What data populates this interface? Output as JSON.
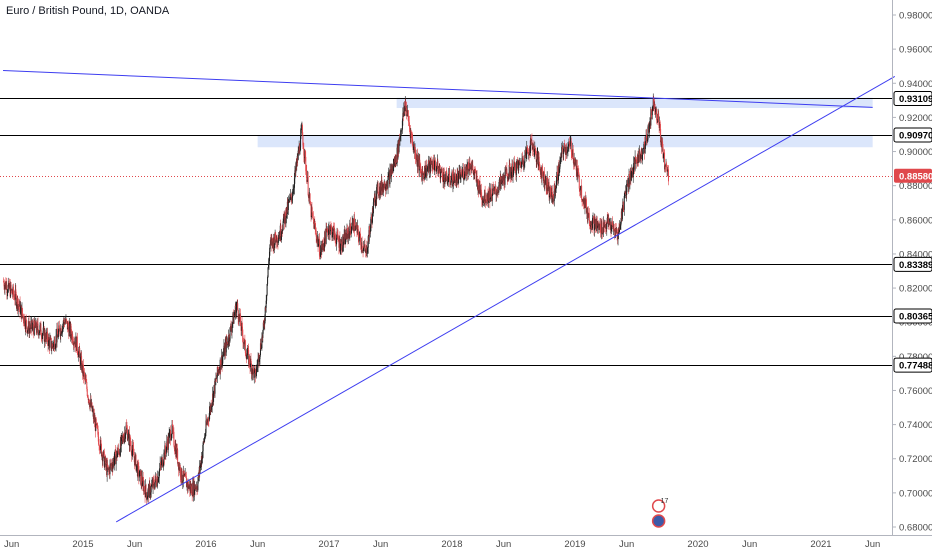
{
  "header": {
    "title": "Euro / British Pound, 1D, OANDA"
  },
  "colors": {
    "up": "#1f1f1f",
    "down": "#e0484c",
    "trendline": "#3d3df0",
    "zone": "#dbe6fb",
    "level": "#000000",
    "price_line": "#e0484c",
    "axis_text": "#4a4a4a"
  },
  "chart_data": {
    "type": "candlestick",
    "symbol": "EURGBP",
    "timeframe": "1D",
    "source": "OANDA",
    "ylim": [
      0.678,
      0.9875
    ],
    "y_ticks": [
      0.98,
      0.96,
      0.94,
      0.92,
      0.9,
      0.88,
      0.86,
      0.84,
      0.82,
      0.8,
      0.78,
      0.76,
      0.74,
      0.72,
      0.7,
      0.68
    ],
    "y_tick_labels": [
      "0.98000",
      "0.96000",
      "0.94000",
      "0.92000",
      "0.90000",
      "0.88000",
      "0.86000",
      "0.84000",
      "0.82000",
      "0.80000",
      "0.78000",
      "0.76000",
      "0.74000",
      "0.72000",
      "0.70000",
      "0.68000"
    ],
    "x_ticks": [
      {
        "label": "Jun",
        "date": 2014.42
      },
      {
        "label": "2015",
        "date": 2015.0
      },
      {
        "label": "Jun",
        "date": 2015.42
      },
      {
        "label": "2016",
        "date": 2016.0
      },
      {
        "label": "Jun",
        "date": 2016.42
      },
      {
        "label": "2017",
        "date": 2017.0
      },
      {
        "label": "Jun",
        "date": 2017.42
      },
      {
        "label": "2018",
        "date": 2018.0
      },
      {
        "label": "Jun",
        "date": 2018.42
      },
      {
        "label": "2019",
        "date": 2019.0
      },
      {
        "label": "Jun",
        "date": 2019.42
      },
      {
        "label": "2020",
        "date": 2020.0
      },
      {
        "label": "Jun",
        "date": 2020.42
      },
      {
        "label": "2021",
        "date": 2021.0
      },
      {
        "label": "Jun",
        "date": 2021.42
      }
    ],
    "price_path": [
      [
        2014.35,
        0.824
      ],
      [
        2014.45,
        0.815
      ],
      [
        2014.55,
        0.797
      ],
      [
        2014.65,
        0.796
      ],
      [
        2014.75,
        0.786
      ],
      [
        2014.85,
        0.801
      ],
      [
        2014.95,
        0.787
      ],
      [
        2015.05,
        0.755
      ],
      [
        2015.15,
        0.725
      ],
      [
        2015.2,
        0.712
      ],
      [
        2015.3,
        0.726
      ],
      [
        2015.35,
        0.738
      ],
      [
        2015.45,
        0.712
      ],
      [
        2015.52,
        0.699
      ],
      [
        2015.6,
        0.708
      ],
      [
        2015.72,
        0.737
      ],
      [
        2015.8,
        0.71
      ],
      [
        2015.88,
        0.702
      ],
      [
        2015.93,
        0.705
      ],
      [
        2016.0,
        0.738
      ],
      [
        2016.1,
        0.772
      ],
      [
        2016.18,
        0.79
      ],
      [
        2016.25,
        0.81
      ],
      [
        2016.32,
        0.784
      ],
      [
        2016.4,
        0.768
      ],
      [
        2016.47,
        0.797
      ],
      [
        2016.52,
        0.845
      ],
      [
        2016.6,
        0.852
      ],
      [
        2016.7,
        0.875
      ],
      [
        2016.78,
        0.912
      ],
      [
        2016.85,
        0.866
      ],
      [
        2016.93,
        0.841
      ],
      [
        2017.0,
        0.856
      ],
      [
        2017.1,
        0.845
      ],
      [
        2017.2,
        0.858
      ],
      [
        2017.3,
        0.84
      ],
      [
        2017.38,
        0.876
      ],
      [
        2017.48,
        0.883
      ],
      [
        2017.55,
        0.897
      ],
      [
        2017.62,
        0.928
      ],
      [
        2017.68,
        0.905
      ],
      [
        2017.75,
        0.887
      ],
      [
        2017.85,
        0.893
      ],
      [
        2017.95,
        0.884
      ],
      [
        2018.05,
        0.884
      ],
      [
        2018.15,
        0.893
      ],
      [
        2018.25,
        0.873
      ],
      [
        2018.35,
        0.876
      ],
      [
        2018.45,
        0.887
      ],
      [
        2018.55,
        0.892
      ],
      [
        2018.65,
        0.905
      ],
      [
        2018.72,
        0.89
      ],
      [
        2018.82,
        0.872
      ],
      [
        2018.9,
        0.901
      ],
      [
        2018.97,
        0.903
      ],
      [
        2019.05,
        0.877
      ],
      [
        2019.12,
        0.86
      ],
      [
        2019.2,
        0.855
      ],
      [
        2019.27,
        0.858
      ],
      [
        2019.35,
        0.851
      ],
      [
        2019.42,
        0.88
      ],
      [
        2019.5,
        0.895
      ],
      [
        2019.57,
        0.903
      ],
      [
        2019.64,
        0.93
      ],
      [
        2019.68,
        0.918
      ],
      [
        2019.72,
        0.896
      ],
      [
        2019.76,
        0.886
      ]
    ],
    "levels": [
      {
        "value": 0.93109,
        "label": "0.93109"
      },
      {
        "value": 0.9097,
        "label": "0.90970"
      },
      {
        "value": 0.83389,
        "label": "0.83389"
      },
      {
        "value": 0.80365,
        "label": "0.80365"
      },
      {
        "value": 0.77488,
        "label": "0.77488"
      }
    ],
    "current_price": {
      "value": 0.8858,
      "label": "0.88580"
    },
    "zones": [
      {
        "date_start": 2017.55,
        "date_end": 2021.42,
        "low": 0.9255,
        "high": 0.9315
      },
      {
        "date_start": 2016.42,
        "date_end": 2021.42,
        "low": 0.9025,
        "high": 0.9097
      }
    ],
    "trendlines": [
      {
        "start": [
          2014.35,
          0.9475
        ],
        "end": [
          2021.42,
          0.9259
        ]
      },
      {
        "start": [
          2015.27,
          0.683
        ],
        "end": [
          2021.6,
          0.944
        ]
      }
    ],
    "grid": false,
    "events": [
      {
        "label": "17",
        "date": 2019.68
      }
    ]
  }
}
